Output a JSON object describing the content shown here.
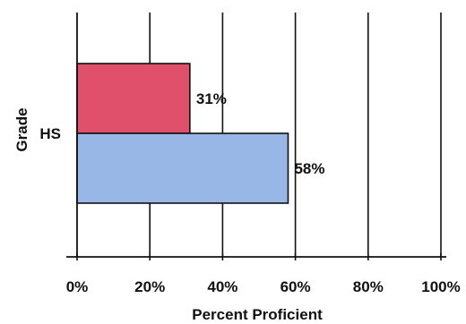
{
  "chart_data": {
    "type": "bar",
    "orientation": "horizontal",
    "categories": [
      "HS"
    ],
    "series": [
      {
        "values": [
          31
        ],
        "labels": [
          "31%"
        ],
        "color": "#e0506a"
      },
      {
        "values": [
          58
        ],
        "labels": [
          "58%"
        ],
        "color": "#98b6e6"
      }
    ],
    "xlim": [
      0,
      100
    ],
    "x_ticks": [
      0,
      20,
      40,
      60,
      80,
      100
    ],
    "x_tick_labels": [
      "0%",
      "20%",
      "40%",
      "60%",
      "80%",
      "100%"
    ],
    "xlabel": "Percent Proficient",
    "ylabel": "Grade",
    "grid": "vertical",
    "legend": "none"
  }
}
